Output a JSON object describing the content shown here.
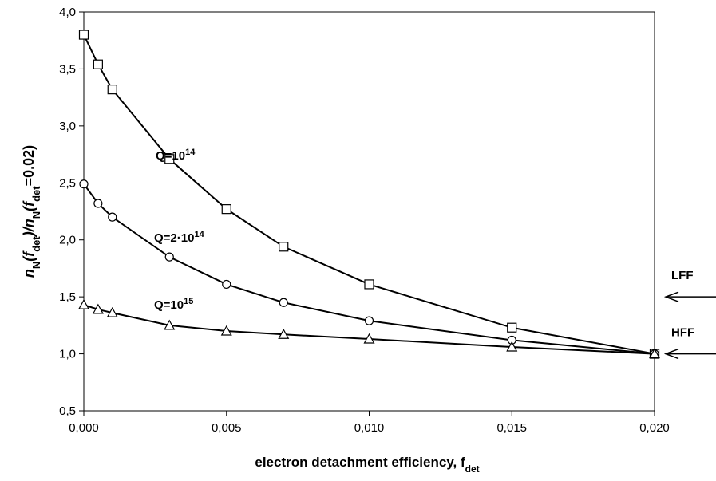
{
  "chart_data": {
    "type": "line",
    "x_label": [
      "electron detachment efficiency, f",
      "det"
    ],
    "y_label": [
      "n",
      "N",
      "(f",
      "det",
      ")/n",
      "N",
      "(f",
      "det",
      "=0.02)"
    ],
    "x": [
      0,
      0.0005,
      0.001,
      0.003,
      0.005,
      0.007,
      0.01,
      0.015,
      0.02
    ],
    "series": [
      {
        "name": {
          "text": "Q=10",
          "sup": "14"
        },
        "marker": "square",
        "color": "#000000",
        "values": [
          3.8,
          3.54,
          3.32,
          2.71,
          2.27,
          1.94,
          1.61,
          1.23,
          1.0
        ]
      },
      {
        "name": {
          "text": "Q=2·10",
          "sup": "14"
        },
        "marker": "circle",
        "color": "#000000",
        "values": [
          2.49,
          2.32,
          2.2,
          1.85,
          1.61,
          1.45,
          1.29,
          1.12,
          1.0
        ]
      },
      {
        "name": {
          "text": "Q=10",
          "sup": "15"
        },
        "marker": "triangle",
        "color": "#000000",
        "values": [
          1.43,
          1.39,
          1.36,
          1.25,
          1.2,
          1.17,
          1.13,
          1.06,
          1.0
        ]
      }
    ],
    "xlim": [
      0,
      0.02
    ],
    "ylim": [
      0.5,
      4.0
    ],
    "xticks": [
      {
        "value": 0,
        "label": "0,000"
      },
      {
        "value": 0.005,
        "label": "0,005"
      },
      {
        "value": 0.01,
        "label": "0,010"
      },
      {
        "value": 0.015,
        "label": "0,015"
      },
      {
        "value": 0.02,
        "label": "0,020"
      }
    ],
    "yticks": [
      {
        "value": 0.5,
        "label": "0,5"
      },
      {
        "value": 1.0,
        "label": "1,0"
      },
      {
        "value": 1.5,
        "label": "1,5"
      },
      {
        "value": 2.0,
        "label": "2,0"
      },
      {
        "value": 2.5,
        "label": "2,5"
      },
      {
        "value": 3.0,
        "label": "3,0"
      },
      {
        "value": 3.5,
        "label": "3,5"
      },
      {
        "value": 4.0,
        "label": "4,0"
      }
    ],
    "annotations": [
      {
        "text": "LFF",
        "y": 1.5
      },
      {
        "text": "HFF",
        "y": 1.0
      }
    ]
  }
}
